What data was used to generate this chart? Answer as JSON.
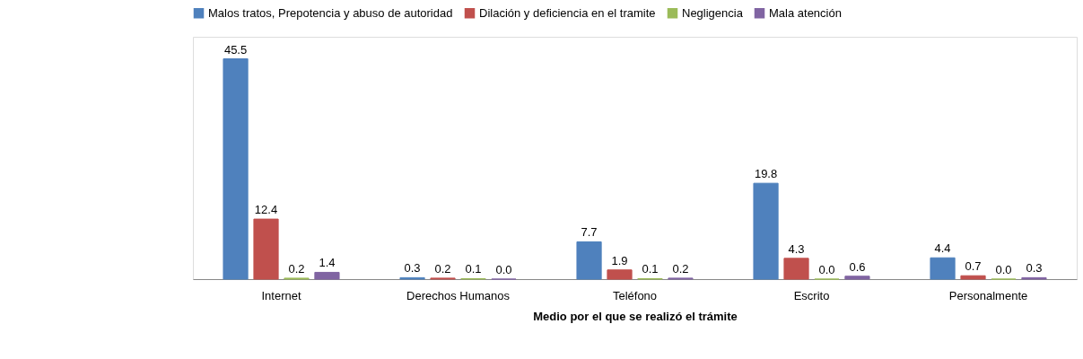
{
  "chart_data": {
    "type": "bar",
    "xlabel": "Medio por el que se realizó el trámite",
    "categories": [
      "Internet",
      "Derechos Humanos",
      "Teléfono",
      "Escrito",
      "Personalmente"
    ],
    "series": [
      {
        "name": "Malos tratos, Prepotencia y abuso de autoridad",
        "color": "#4f81bd",
        "values": [
          45.5,
          0.3,
          7.7,
          19.8,
          4.4
        ],
        "value_labels": [
          "45.5",
          "0.3",
          "7.7",
          "19.8",
          "4.4"
        ]
      },
      {
        "name": "Dilación y deficiencia en el tramite",
        "color": "#c0504d",
        "values": [
          12.4,
          0.2,
          1.9,
          4.3,
          0.7
        ],
        "value_labels": [
          "12.4",
          "0.2",
          "1.9",
          "4.3",
          "0.7"
        ]
      },
      {
        "name": "Negligencia",
        "color": "#9bbb59",
        "values": [
          0.2,
          0.1,
          0.1,
          0,
          0
        ],
        "value_labels": [
          "0.2",
          "0.1",
          "0.1",
          "0.0",
          "0.0"
        ]
      },
      {
        "name": "Mala atención",
        "color": "#8064a2",
        "values": [
          1.4,
          0,
          0.2,
          0.6,
          0.3
        ],
        "value_labels": [
          "1.4",
          "0.0",
          "0.2",
          "0.6",
          "0.3"
        ]
      }
    ],
    "legend": "top",
    "grid": false
  }
}
